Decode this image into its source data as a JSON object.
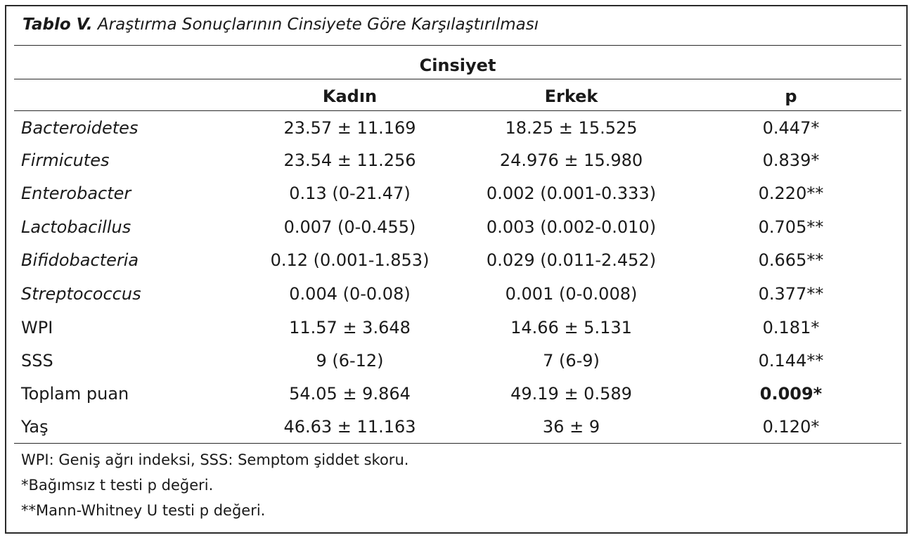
{
  "caption": {
    "label": "Tablo V.",
    "text": " Araştırma Sonuçlarının Cinsiyete Göre Karşılaştırılması"
  },
  "group_header": "Cinsiyet",
  "columns": {
    "female": "Kadın",
    "male": "Erkek",
    "p": "p"
  },
  "rows": [
    {
      "label": "Bacteroidetes",
      "female": "23.57 ± 11.169",
      "male": "18.25 ± 15.525",
      "p": "0.447*"
    },
    {
      "label": "Firmicutes",
      "female": "23.54 ± 11.256",
      "male": "24.976 ± 15.980",
      "p": "0.839*"
    },
    {
      "label": "Enterobacter",
      "female": "0.13 (0-21.47)",
      "male": "0.002 (0.001-0.333)",
      "p": "0.220**"
    },
    {
      "label": "Lactobacillus",
      "female": "0.007 (0-0.455)",
      "male": "0.003 (0.002-0.010)",
      "p": "0.705**"
    },
    {
      "label": "Bifidobacteria",
      "female": "0.12 (0.001-1.853)",
      "male": "0.029 (0.011-2.452)",
      "p": "0.665**"
    },
    {
      "label": "Streptococcus",
      "female": "0.004 (0-0.08)",
      "male": "0.001 (0-0.008)",
      "p": "0.377**"
    },
    {
      "label": "WPI",
      "female": "11.57 ± 3.648",
      "male": "14.66 ± 5.131",
      "p": "0.181*"
    },
    {
      "label": "SSS",
      "female": "9 (6-12)",
      "male": "7 (6-9)",
      "p": "0.144**"
    },
    {
      "label": "Toplam puan",
      "female": "54.05 ± 9.864",
      "male": "49.19 ± 0.589",
      "p": "0.009*"
    },
    {
      "label": "Yaş",
      "female": "46.63 ± 11.163",
      "male": "36 ± 9",
      "p": "0.120*"
    }
  ],
  "notes": [
    "WPI: Geniş ağrı indeksi, SSS: Semptom şiddet skoru.",
    "*Bağımsız t testi p değeri.",
    "**Mann-Whitney U testi p değeri."
  ]
}
